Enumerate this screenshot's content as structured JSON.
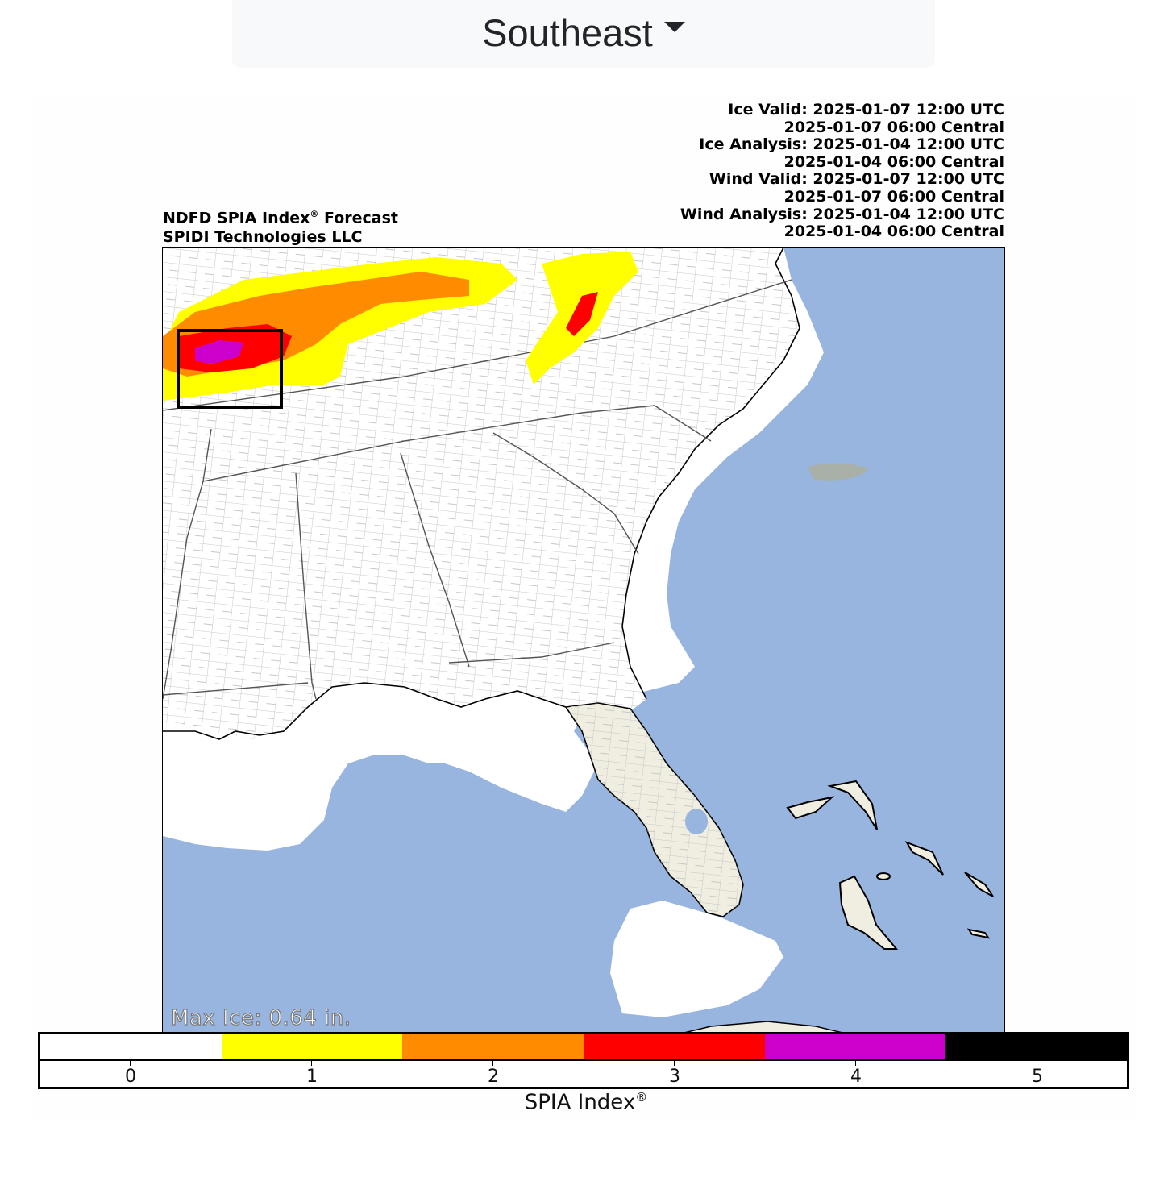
{
  "region_dropdown": {
    "selected": "Southeast",
    "icon": "caret-down-icon"
  },
  "header": {
    "title_line1": "NDFD SPIA Index",
    "title_reg": "®",
    "title_line1_suffix": " Forecast",
    "title_line2": "SPIDI Technologies LLC"
  },
  "times": [
    "Ice Valid: 2025-01-07 12:00 UTC",
    "2025-01-07 06:00 Central",
    "Ice Analysis: 2025-01-04 12:00 UTC",
    "2025-01-04 06:00 Central",
    "Wind Valid: 2025-01-07 12:00 UTC",
    "2025-01-07 06:00 Central",
    "Wind Analysis: 2025-01-04 12:00 UTC",
    "2025-01-04 06:00 Central"
  ],
  "map": {
    "max_ice": "Max Ice: 0.64 in.",
    "colors": {
      "ocean": "#98b5e0",
      "land": "#ffffff",
      "florida": "#efeee0",
      "county": "#c8c8c8",
      "coast": "#000000"
    }
  },
  "colorbar": {
    "label": "SPIA Index",
    "label_reg": "®",
    "colors": [
      "#ffffff",
      "#ffff00",
      "#ff8c00",
      "#ff0000",
      "#cc00cc",
      "#000000"
    ],
    "ticks": [
      "0",
      "1",
      "2",
      "3",
      "4",
      "5"
    ]
  }
}
